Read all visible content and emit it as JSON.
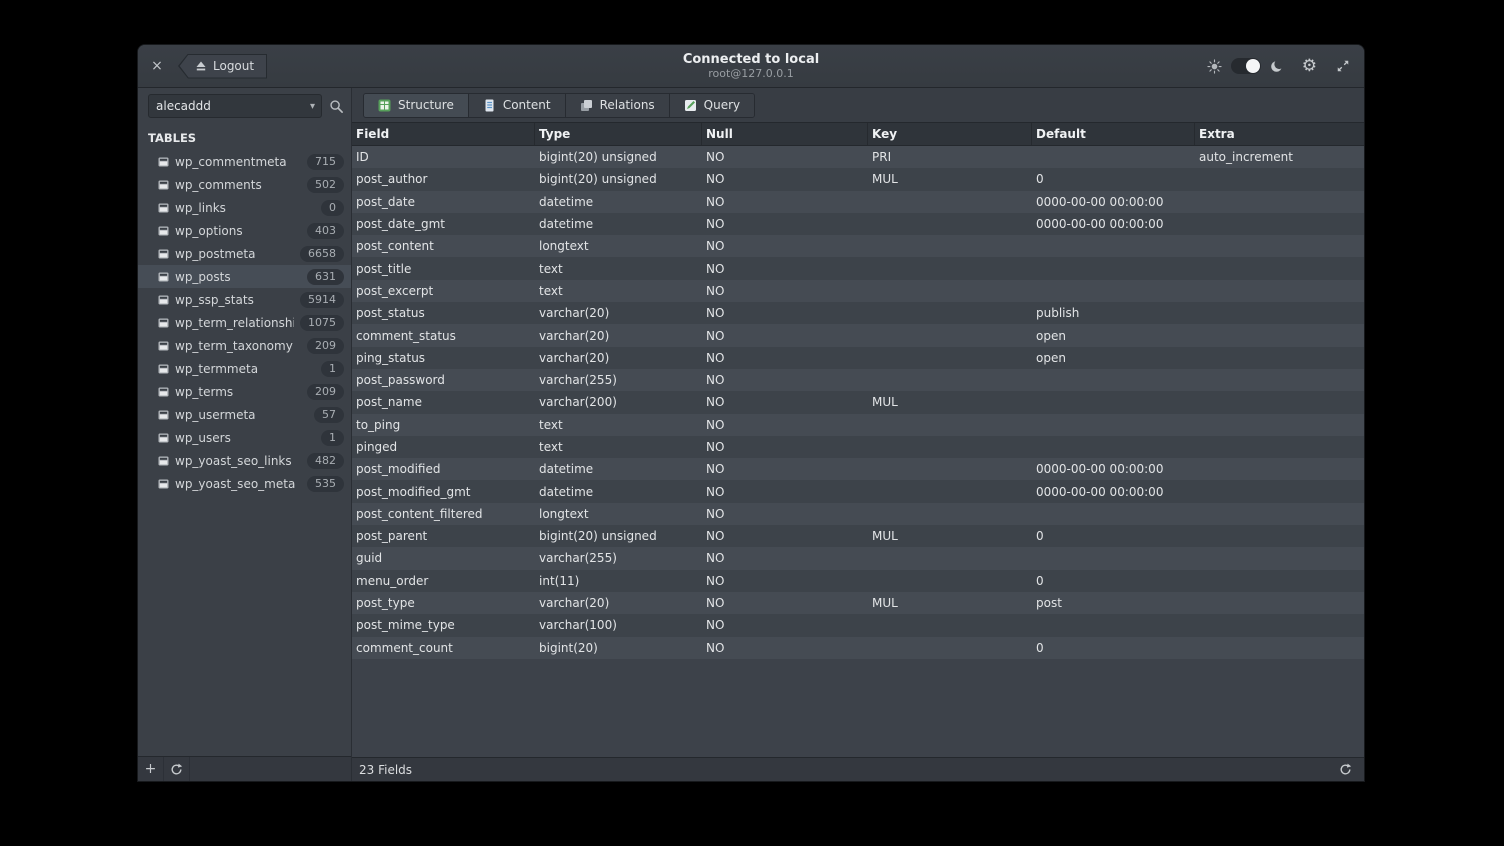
{
  "window": {
    "title": "Connected to local",
    "subtitle": "root@127.0.0.1",
    "logout_label": "Logout"
  },
  "icons": {
    "close": "×",
    "caret": "▾",
    "gear": "⚙",
    "add": "+"
  },
  "colors": {
    "window_background": "#3d424a",
    "selected_row": "#464d56",
    "structure_icon_green": "#57a05b",
    "content_icon_blue": "#5b94c8"
  },
  "sidebar": {
    "search_value": "alecaddd",
    "section_label": "TABLES",
    "tables": [
      {
        "name": "wp_commentmeta",
        "count": "715",
        "selected": false
      },
      {
        "name": "wp_comments",
        "count": "502",
        "selected": false
      },
      {
        "name": "wp_links",
        "count": "0",
        "selected": false
      },
      {
        "name": "wp_options",
        "count": "403",
        "selected": false
      },
      {
        "name": "wp_postmeta",
        "count": "6658",
        "selected": false
      },
      {
        "name": "wp_posts",
        "count": "631",
        "selected": true
      },
      {
        "name": "wp_ssp_stats",
        "count": "5914",
        "selected": false
      },
      {
        "name": "wp_term_relationships",
        "count": "1075",
        "selected": false
      },
      {
        "name": "wp_term_taxonomy",
        "count": "209",
        "selected": false
      },
      {
        "name": "wp_termmeta",
        "count": "1",
        "selected": false
      },
      {
        "name": "wp_terms",
        "count": "209",
        "selected": false
      },
      {
        "name": "wp_usermeta",
        "count": "57",
        "selected": false
      },
      {
        "name": "wp_users",
        "count": "1",
        "selected": false
      },
      {
        "name": "wp_yoast_seo_links",
        "count": "482",
        "selected": false
      },
      {
        "name": "wp_yoast_seo_meta",
        "count": "535",
        "selected": false
      }
    ]
  },
  "tabs": [
    {
      "label": "Structure",
      "icon": "structure-icon",
      "active": true
    },
    {
      "label": "Content",
      "icon": "content-icon",
      "active": false
    },
    {
      "label": "Relations",
      "icon": "relations-icon",
      "active": false
    },
    {
      "label": "Query",
      "icon": "query-icon",
      "active": false
    }
  ],
  "table": {
    "columns": [
      "Field",
      "Type",
      "Null",
      "Key",
      "Default",
      "Extra"
    ],
    "rows": [
      [
        "ID",
        "bigint(20) unsigned",
        "NO",
        "PRI",
        "",
        "auto_increment"
      ],
      [
        "post_author",
        "bigint(20) unsigned",
        "NO",
        "MUL",
        "0",
        ""
      ],
      [
        "post_date",
        "datetime",
        "NO",
        "",
        "0000-00-00 00:00:00",
        ""
      ],
      [
        "post_date_gmt",
        "datetime",
        "NO",
        "",
        "0000-00-00 00:00:00",
        ""
      ],
      [
        "post_content",
        "longtext",
        "NO",
        "",
        "",
        ""
      ],
      [
        "post_title",
        "text",
        "NO",
        "",
        "",
        ""
      ],
      [
        "post_excerpt",
        "text",
        "NO",
        "",
        "",
        ""
      ],
      [
        "post_status",
        "varchar(20)",
        "NO",
        "",
        "publish",
        ""
      ],
      [
        "comment_status",
        "varchar(20)",
        "NO",
        "",
        "open",
        ""
      ],
      [
        "ping_status",
        "varchar(20)",
        "NO",
        "",
        "open",
        ""
      ],
      [
        "post_password",
        "varchar(255)",
        "NO",
        "",
        "",
        ""
      ],
      [
        "post_name",
        "varchar(200)",
        "NO",
        "MUL",
        "",
        ""
      ],
      [
        "to_ping",
        "text",
        "NO",
        "",
        "",
        ""
      ],
      [
        "pinged",
        "text",
        "NO",
        "",
        "",
        ""
      ],
      [
        "post_modified",
        "datetime",
        "NO",
        "",
        "0000-00-00 00:00:00",
        ""
      ],
      [
        "post_modified_gmt",
        "datetime",
        "NO",
        "",
        "0000-00-00 00:00:00",
        ""
      ],
      [
        "post_content_filtered",
        "longtext",
        "NO",
        "",
        "",
        ""
      ],
      [
        "post_parent",
        "bigint(20) unsigned",
        "NO",
        "MUL",
        "0",
        ""
      ],
      [
        "guid",
        "varchar(255)",
        "NO",
        "",
        "",
        ""
      ],
      [
        "menu_order",
        "int(11)",
        "NO",
        "",
        "0",
        ""
      ],
      [
        "post_type",
        "varchar(20)",
        "NO",
        "MUL",
        "post",
        ""
      ],
      [
        "post_mime_type",
        "varchar(100)",
        "NO",
        "",
        "",
        ""
      ],
      [
        "comment_count",
        "bigint(20)",
        "NO",
        "",
        "0",
        ""
      ]
    ]
  },
  "statusbar": {
    "fields_count": "23 Fields"
  }
}
